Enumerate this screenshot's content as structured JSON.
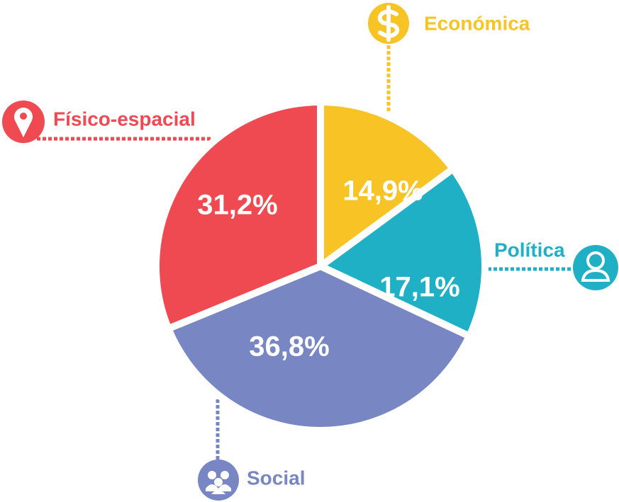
{
  "chart_data": {
    "type": "pie",
    "categories": [
      "Económica",
      "Política",
      "Social",
      "Físico-espacial"
    ],
    "values": [
      14.9,
      17.1,
      36.8,
      31.2
    ],
    "value_labels": [
      "14,9%",
      "17,1%",
      "36,8%",
      "31,2%"
    ],
    "colors": [
      "#f7c325",
      "#1fb0c5",
      "#7886c4",
      "#ef4a52"
    ]
  }
}
